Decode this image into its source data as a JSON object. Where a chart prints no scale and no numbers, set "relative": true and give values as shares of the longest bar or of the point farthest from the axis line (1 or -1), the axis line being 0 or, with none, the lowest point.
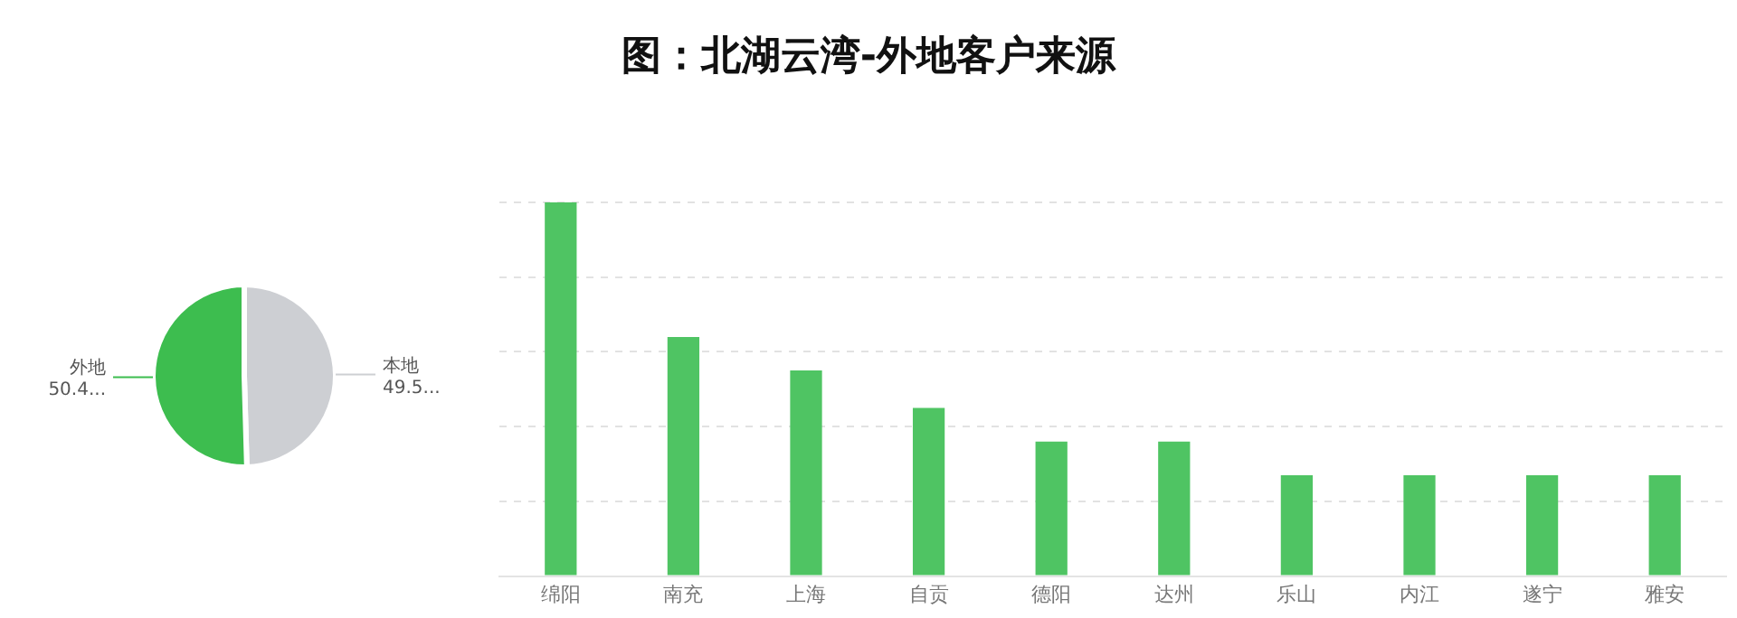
{
  "chart_data": [
    {
      "type": "pie",
      "categories": [
        "本地",
        "外地"
      ],
      "values": [
        49.55,
        50.45
      ],
      "colors": [
        "#cdcfd3",
        "#3dbd4f"
      ],
      "value_labels": [
        "49.5...",
        "50.4..."
      ]
    },
    {
      "type": "bar",
      "title": "图：北湖云湾-外地客户来源",
      "categories": [
        "绵阳",
        "南充",
        "上海",
        "自贡",
        "德阳",
        "达州",
        "乐山",
        "内江",
        "遂宁",
        "雅安"
      ],
      "values": [
        1,
        0.64,
        0.55,
        0.45,
        0.36,
        0.36,
        0.27,
        0.27,
        0.27,
        0.27
      ],
      "color": "#4fc463",
      "relative": true,
      "grid": "y"
    }
  ]
}
